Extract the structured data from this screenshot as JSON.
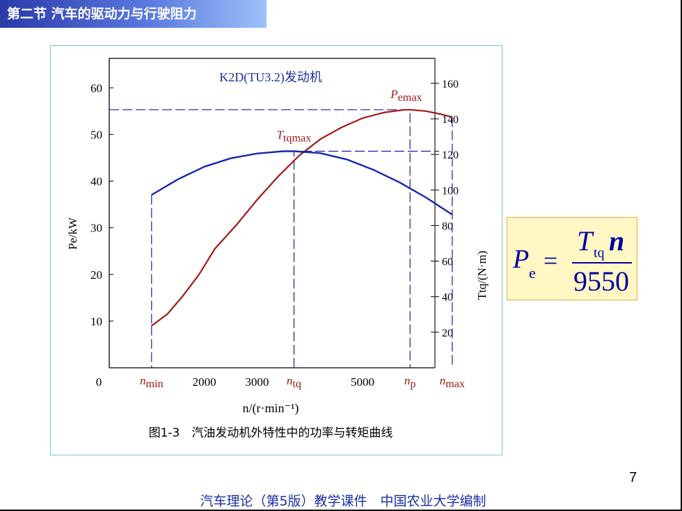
{
  "header": {
    "title": "第二节 汽车的驱动力与行驶阻力"
  },
  "chart_data": {
    "type": "line",
    "title": "K2D(TU3.2)发动机",
    "caption": "图1-3　汽油发动机外特性中的功率与转矩曲线",
    "xlabel": "n/(r·min⁻¹)",
    "ylabel_left": "Pe/kW",
    "ylabel_right": "Ttq/(N·m)",
    "x_ticks": [
      "0",
      "2000",
      "3000",
      "5000"
    ],
    "x_ticks_values": [
      0,
      2000,
      3000,
      5000
    ],
    "x_special_ticks": [
      {
        "main": "n",
        "sub": "min",
        "value": 1000
      },
      {
        "main": "n",
        "sub": "tq",
        "value": 3700
      },
      {
        "main": "n",
        "sub": "p",
        "value": 5900
      },
      {
        "main": "n",
        "sub": "max",
        "value": 6700
      }
    ],
    "xlim": [
      0,
      7200
    ],
    "y_left_ticks": [
      10,
      20,
      30,
      40,
      50,
      60
    ],
    "ylim_left": [
      0,
      66.3
    ],
    "y_right_ticks": [
      20,
      40,
      60,
      80,
      100,
      120,
      140,
      160
    ],
    "ylim_right": [
      0,
      174
    ],
    "series": [
      {
        "name": "Pe",
        "axis": "left",
        "color": "#a01818",
        "x": [
          1000,
          1300,
          1600,
          1900,
          2200,
          2600,
          3000,
          3400,
          3800,
          4200,
          4600,
          5000,
          5400,
          5800,
          5900,
          6200,
          6500,
          6700
        ],
        "y": [
          9.0,
          11.5,
          15.5,
          20.0,
          25.5,
          30.5,
          36.0,
          41.0,
          45.5,
          49.0,
          51.5,
          53.5,
          54.7,
          55.3,
          55.3,
          55.0,
          54.3,
          53.7
        ]
      },
      {
        "name": "Ttq",
        "axis": "right",
        "color": "#1428a8",
        "x": [
          1000,
          1500,
          2000,
          2500,
          3000,
          3500,
          3700,
          4200,
          4700,
          5200,
          5700,
          6200,
          6700
        ],
        "y": [
          97.2,
          106.0,
          113.1,
          117.8,
          120.5,
          121.8,
          121.8,
          120.7,
          117.2,
          111.4,
          104.3,
          95.8,
          86.1
        ]
      }
    ],
    "annotations": [
      {
        "main": "P",
        "sub": "emax",
        "color": "#a01818"
      },
      {
        "main": "T",
        "sub": "tqmax",
        "color": "#a01818"
      }
    ],
    "reference_lines": {
      "pemax": {
        "x": 5900,
        "y_left": 55.3
      },
      "ttqmax": {
        "x": 3700,
        "y_right": 121.8
      },
      "nmin": 1000,
      "nmax": 6700
    },
    "grid": false
  },
  "formula": {
    "lhs_symbol": "P",
    "lhs_sub": "e",
    "equals": "=",
    "num_symbol": "T",
    "num_sub": "tq",
    "num_var": "n",
    "denominator": "9550"
  },
  "page_number": "7",
  "footer": "汽车理论（第5版）教学课件　中国农业大学编制",
  "colors": {
    "power": "#a01818",
    "torque": "#1428a8",
    "dashed": "#1a1aa8",
    "title_blue": "#1a2ea8"
  }
}
